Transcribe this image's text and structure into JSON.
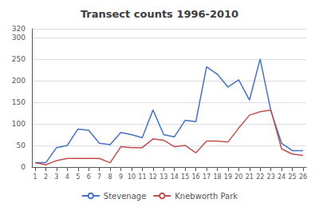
{
  "chart_data": {
    "type": "line",
    "title": "Transect counts 1996-2010",
    "x": [
      1,
      2,
      3,
      4,
      5,
      6,
      7,
      8,
      9,
      10,
      11,
      12,
      13,
      14,
      15,
      16,
      17,
      18,
      19,
      20,
      21,
      22,
      23,
      24,
      25,
      26
    ],
    "series": [
      {
        "name": "Stevenage",
        "color": "#4472C4",
        "values": [
          10,
          10,
          45,
          50,
          88,
          85,
          55,
          52,
          80,
          75,
          68,
          132,
          75,
          70,
          108,
          105,
          232,
          215,
          185,
          202,
          155,
          250,
          130,
          55,
          38,
          38
        ]
      },
      {
        "name": "Knebworth Park",
        "color": "#C0504D",
        "values": [
          10,
          5,
          15,
          20,
          20,
          20,
          20,
          10,
          47,
          45,
          45,
          65,
          62,
          47,
          50,
          33,
          60,
          60,
          58,
          90,
          120,
          128,
          132,
          42,
          30,
          27
        ]
      }
    ],
    "xlim": [
      0.7,
      26.3
    ],
    "xticks": [
      1,
      2,
      3,
      4,
      5,
      6,
      7,
      8,
      9,
      10,
      11,
      12,
      13,
      14,
      15,
      16,
      17,
      18,
      19,
      20,
      21,
      22,
      23,
      24,
      25,
      26
    ],
    "ylim": [
      0,
      320
    ],
    "yticks": [
      0,
      50,
      100,
      150,
      200,
      250,
      300
    ],
    "grid": true,
    "legend": "bottom"
  }
}
